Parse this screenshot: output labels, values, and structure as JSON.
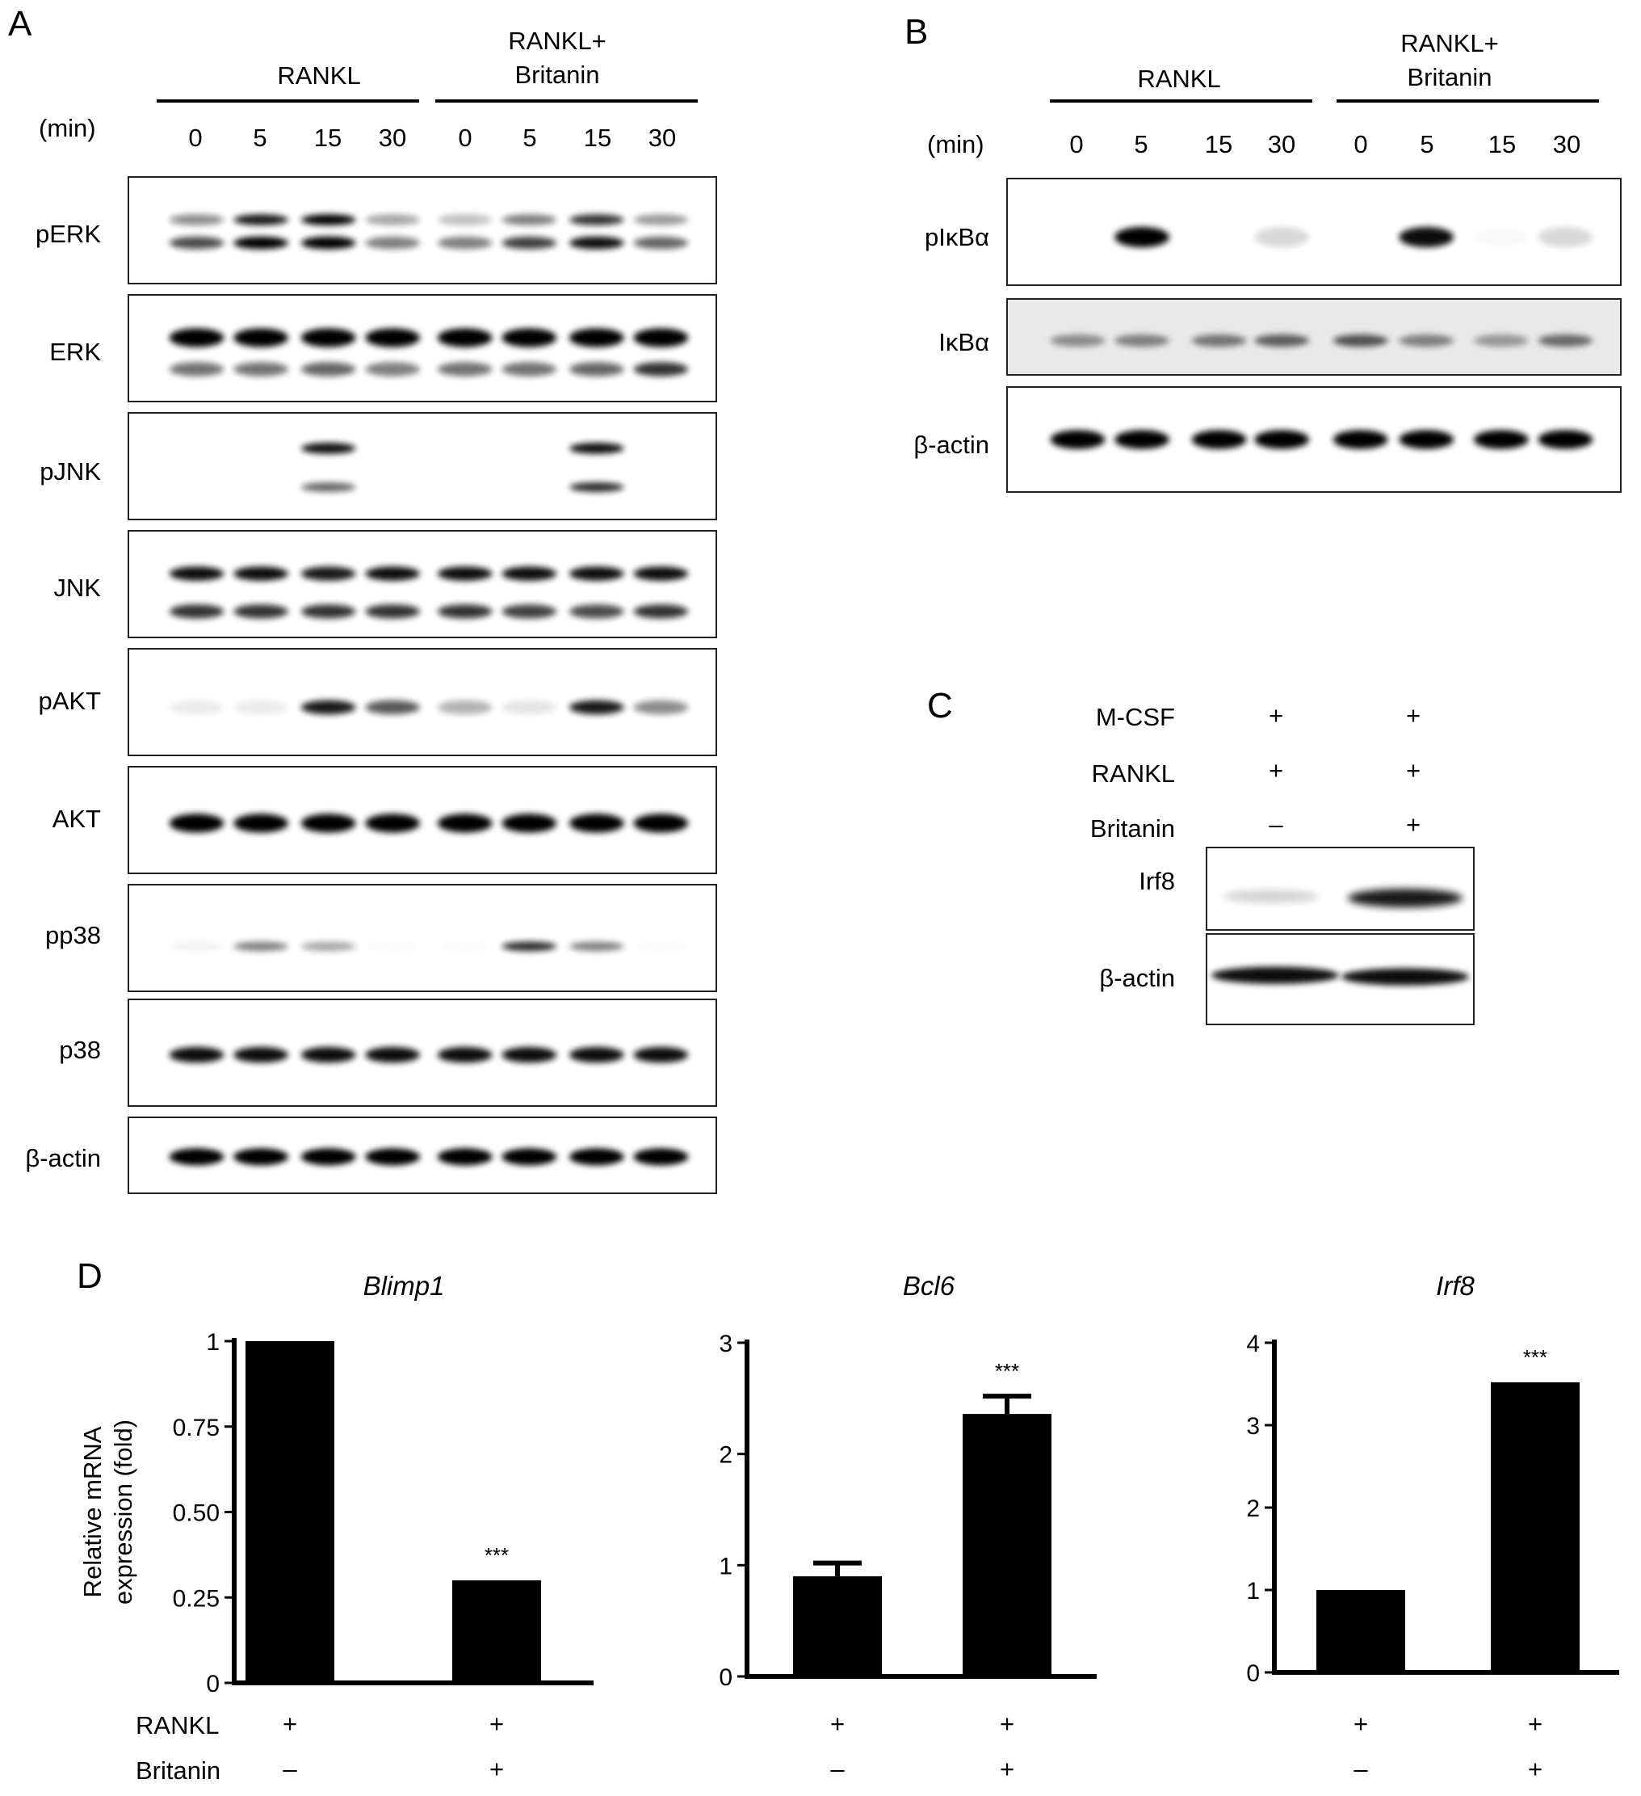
{
  "panels": {
    "A": {
      "letter": "A",
      "groups": [
        "RANKL",
        "RANKL+\nBritanin"
      ],
      "min_label": "(min)",
      "time_points": [
        "0",
        "5",
        "15",
        "30",
        "0",
        "5",
        "15",
        "30"
      ],
      "blots": [
        "pERK",
        "ERK",
        "pJNK",
        "JNK",
        "pAKT",
        "AKT",
        "pp38",
        "p38",
        "β-actin"
      ]
    },
    "B": {
      "letter": "B",
      "groups": [
        "RANKL",
        "RANKL+\nBritanin"
      ],
      "min_label": "(min)",
      "time_points": [
        "0",
        "5",
        "15",
        "30",
        "0",
        "5",
        "15",
        "30"
      ],
      "blots": [
        "pIκBα",
        "IκBα",
        "β-actin"
      ]
    },
    "C": {
      "letter": "C",
      "conditions": [
        {
          "name": "M-CSF",
          "lanes": [
            "+",
            "+"
          ]
        },
        {
          "name": "RANKL",
          "lanes": [
            "+",
            "+"
          ]
        },
        {
          "name": "Britanin",
          "lanes": [
            "–",
            "+"
          ]
        }
      ],
      "blots": [
        "Irf8",
        "β-actin"
      ]
    },
    "D": {
      "letter": "D",
      "row_labels": [
        "RANKL",
        "Britanin"
      ],
      "rankl_signs": [
        "+",
        "+"
      ],
      "britanin_signs": [
        "–",
        "+"
      ]
    }
  },
  "chart_data": [
    {
      "type": "bar",
      "title": "Blimp1",
      "ylabel": "Relative mRNA\nexpression (fold)",
      "categories": [
        "RANKL",
        "RANKL+Britanin"
      ],
      "values": [
        1.0,
        0.3
      ],
      "errors": [
        0,
        0
      ],
      "significance": [
        "",
        "***"
      ],
      "ylim": [
        0,
        1
      ],
      "yticks": [
        "0",
        "0.25",
        "0.50",
        "0.75",
        "1"
      ]
    },
    {
      "type": "bar",
      "title": "Bcl6",
      "ylabel": "",
      "categories": [
        "RANKL",
        "RANKL+Britanin"
      ],
      "values": [
        0.9,
        2.36
      ],
      "errors": [
        0.12,
        0.16
      ],
      "significance": [
        "",
        "***"
      ],
      "ylim": [
        0,
        3
      ],
      "yticks": [
        "0",
        "1",
        "2",
        "3"
      ]
    },
    {
      "type": "bar",
      "title": "Irf8",
      "ylabel": "",
      "categories": [
        "RANKL",
        "RANKL+Britanin"
      ],
      "values": [
        1.0,
        3.52
      ],
      "errors": [
        0,
        0
      ],
      "significance": [
        "",
        "***"
      ],
      "ylim": [
        0,
        4
      ],
      "yticks": [
        "0",
        "1",
        "2",
        "3",
        "4"
      ]
    }
  ]
}
